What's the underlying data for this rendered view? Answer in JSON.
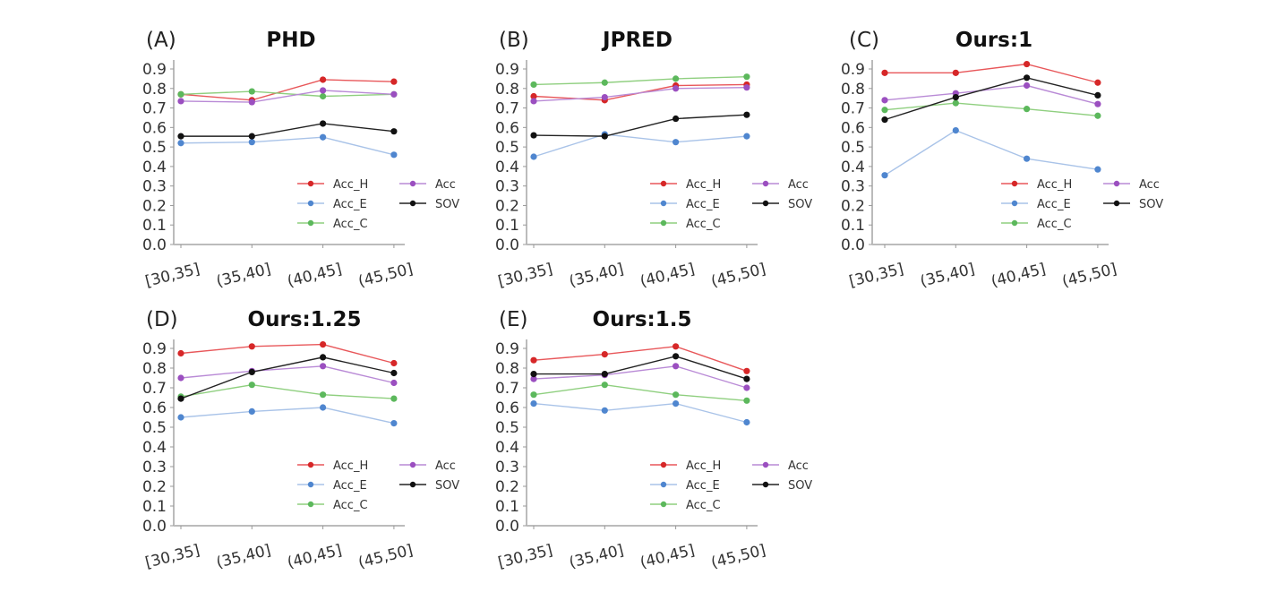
{
  "chart_data": [
    {
      "type": "line",
      "panel_label": "(A)",
      "title": "PHD",
      "categories": [
        "[30,35]",
        "(35,40]",
        "(40,45]",
        "(45,50]"
      ],
      "yticks": [
        "0.0",
        "0.1",
        "0.2",
        "0.3",
        "0.4",
        "0.5",
        "0.6",
        "0.7",
        "0.8",
        "0.9"
      ],
      "ylim": [
        0,
        0.9
      ],
      "xlabel": "",
      "ylabel": "",
      "legend_position": "lower-right",
      "series": [
        {
          "name": "Acc_H",
          "values": [
            0.77,
            0.74,
            0.845,
            0.835
          ]
        },
        {
          "name": "Acc_E",
          "values": [
            0.52,
            0.525,
            0.55,
            0.46
          ]
        },
        {
          "name": "Acc_C",
          "values": [
            0.77,
            0.785,
            0.76,
            0.77
          ]
        },
        {
          "name": "Acc",
          "values": [
            0.735,
            0.73,
            0.79,
            0.77
          ]
        },
        {
          "name": "SOV",
          "values": [
            0.555,
            0.555,
            0.62,
            0.58
          ]
        }
      ]
    },
    {
      "type": "line",
      "panel_label": "(B)",
      "title": "JPRED",
      "categories": [
        "[30,35]",
        "(35,40]",
        "(40,45]",
        "(45,50]"
      ],
      "yticks": [
        "0.0",
        "0.1",
        "0.2",
        "0.3",
        "0.4",
        "0.5",
        "0.6",
        "0.7",
        "0.8",
        "0.9"
      ],
      "ylim": [
        0,
        0.9
      ],
      "xlabel": "",
      "ylabel": "",
      "legend_position": "lower-right",
      "series": [
        {
          "name": "Acc_H",
          "values": [
            0.76,
            0.74,
            0.815,
            0.82
          ]
        },
        {
          "name": "Acc_E",
          "values": [
            0.45,
            0.565,
            0.525,
            0.555
          ]
        },
        {
          "name": "Acc_C",
          "values": [
            0.82,
            0.83,
            0.85,
            0.86
          ]
        },
        {
          "name": "Acc",
          "values": [
            0.735,
            0.755,
            0.8,
            0.805
          ]
        },
        {
          "name": "SOV",
          "values": [
            0.56,
            0.555,
            0.645,
            0.665
          ]
        }
      ]
    },
    {
      "type": "line",
      "panel_label": "(C)",
      "title": "Ours:1",
      "categories": [
        "[30,35]",
        "(35,40]",
        "(40,45]",
        "(45,50]"
      ],
      "yticks": [
        "0.0",
        "0.1",
        "0.2",
        "0.3",
        "0.4",
        "0.5",
        "0.6",
        "0.7",
        "0.8",
        "0.9"
      ],
      "ylim": [
        0,
        0.9
      ],
      "xlabel": "",
      "ylabel": "",
      "legend_position": "lower-right",
      "series": [
        {
          "name": "Acc_H",
          "values": [
            0.88,
            0.88,
            0.925,
            0.83
          ]
        },
        {
          "name": "Acc_E",
          "values": [
            0.355,
            0.585,
            0.44,
            0.385
          ]
        },
        {
          "name": "Acc_C",
          "values": [
            0.69,
            0.725,
            0.695,
            0.66
          ]
        },
        {
          "name": "Acc",
          "values": [
            0.74,
            0.775,
            0.815,
            0.72
          ]
        },
        {
          "name": "SOV",
          "values": [
            0.64,
            0.755,
            0.855,
            0.765
          ]
        }
      ]
    },
    {
      "type": "line",
      "panel_label": "(D)",
      "title": "Ours:1.25",
      "categories": [
        "[30,35]",
        "(35,40]",
        "(40,45]",
        "(45,50]"
      ],
      "yticks": [
        "0.0",
        "0.1",
        "0.2",
        "0.3",
        "0.4",
        "0.5",
        "0.6",
        "0.7",
        "0.8",
        "0.9"
      ],
      "ylim": [
        0,
        0.9
      ],
      "xlabel": "",
      "ylabel": "",
      "legend_position": "lower-right",
      "series": [
        {
          "name": "Acc_H",
          "values": [
            0.875,
            0.91,
            0.92,
            0.825
          ]
        },
        {
          "name": "Acc_E",
          "values": [
            0.55,
            0.58,
            0.6,
            0.52
          ]
        },
        {
          "name": "Acc_C",
          "values": [
            0.655,
            0.715,
            0.665,
            0.645
          ]
        },
        {
          "name": "Acc",
          "values": [
            0.75,
            0.785,
            0.81,
            0.725
          ]
        },
        {
          "name": "SOV",
          "values": [
            0.645,
            0.78,
            0.855,
            0.775
          ]
        }
      ]
    },
    {
      "type": "line",
      "panel_label": "(E)",
      "title": "Ours:1.5",
      "categories": [
        "[30,35]",
        "(35,40]",
        "(40,45]",
        "(45,50]"
      ],
      "yticks": [
        "0.0",
        "0.1",
        "0.2",
        "0.3",
        "0.4",
        "0.5",
        "0.6",
        "0.7",
        "0.8",
        "0.9"
      ],
      "ylim": [
        0,
        0.9
      ],
      "xlabel": "",
      "ylabel": "",
      "legend_position": "lower-right",
      "series": [
        {
          "name": "Acc_H",
          "values": [
            0.84,
            0.87,
            0.91,
            0.785
          ]
        },
        {
          "name": "Acc_E",
          "values": [
            0.62,
            0.585,
            0.62,
            0.525
          ]
        },
        {
          "name": "Acc_C",
          "values": [
            0.665,
            0.715,
            0.665,
            0.635
          ]
        },
        {
          "name": "Acc",
          "values": [
            0.745,
            0.765,
            0.81,
            0.7
          ]
        },
        {
          "name": "SOV",
          "values": [
            0.77,
            0.77,
            0.86,
            0.745
          ]
        }
      ]
    }
  ],
  "series_colors": {
    "Acc_H": {
      "marker": "#d62728",
      "line": "#e8575a"
    },
    "Acc_E": {
      "marker": "#4f86cf",
      "line": "#a9c3e8"
    },
    "Acc_C": {
      "marker": "#5cb85c",
      "line": "#8fcf7f"
    },
    "Acc": {
      "marker": "#9b4fc0",
      "line": "#b98ad6"
    },
    "SOV": {
      "marker": "#111111",
      "line": "#222222"
    }
  }
}
